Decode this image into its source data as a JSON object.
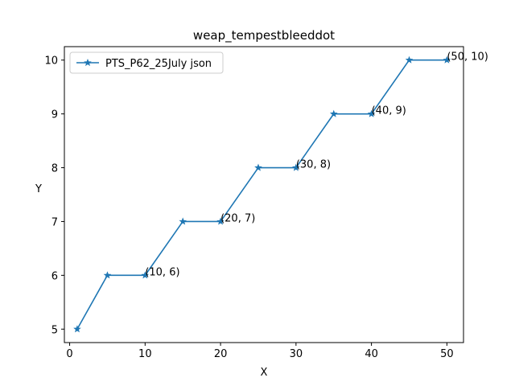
{
  "chart_data": {
    "type": "line",
    "title": "weap_tempestbleeddot",
    "xlabel": "X",
    "ylabel": "Y",
    "xlim": [
      -0.7,
      52.2
    ],
    "ylim": [
      4.75,
      10.25
    ],
    "xticks": [
      0,
      10,
      20,
      30,
      40,
      50
    ],
    "yticks": [
      5,
      6,
      7,
      8,
      9,
      10
    ],
    "grid": false,
    "legend_position": "upper-left",
    "colors": {
      "series": "#1f77b4",
      "axes": "#000000"
    },
    "marker": "star",
    "series": [
      {
        "name": "PTS_P62_25July json",
        "x": [
          1,
          5,
          10,
          15,
          20,
          25,
          30,
          35,
          40,
          45,
          50
        ],
        "y": [
          5,
          6,
          6,
          7,
          7,
          8,
          8,
          9,
          9,
          10,
          10
        ]
      }
    ],
    "annotations": [
      {
        "text": "(10, 6)",
        "x": 10,
        "y": 6
      },
      {
        "text": "(20, 7)",
        "x": 20,
        "y": 7
      },
      {
        "text": "(30, 8)",
        "x": 30,
        "y": 8
      },
      {
        "text": "(40, 9)",
        "x": 40,
        "y": 9
      },
      {
        "text": "(50, 10)",
        "x": 50,
        "y": 10
      }
    ]
  }
}
